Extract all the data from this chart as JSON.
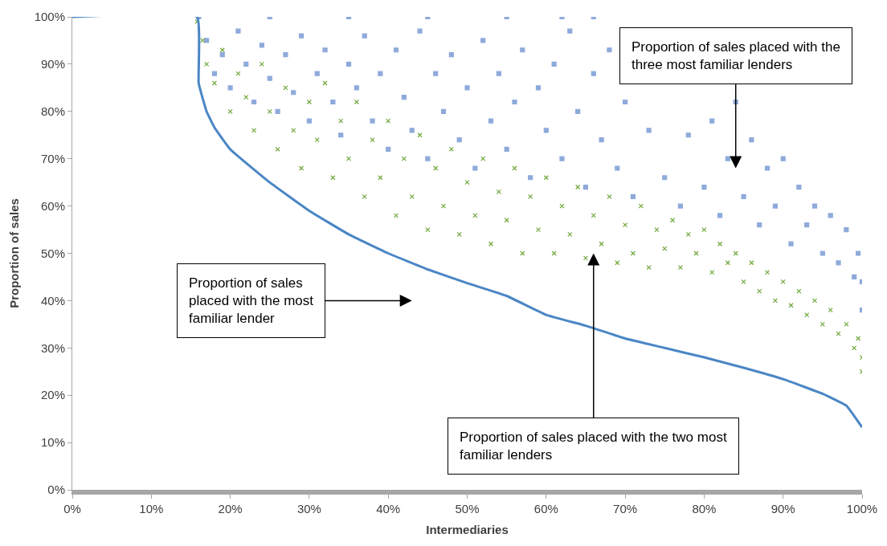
{
  "chart_data": {
    "type": "scatter",
    "xlabel": "Intermediaries",
    "ylabel": "Proportion of sales",
    "xlim": [
      0,
      100
    ],
    "ylim": [
      0,
      100
    ],
    "xticks": [
      {
        "value": 0,
        "label": "0%"
      },
      {
        "value": 10,
        "label": "10%"
      },
      {
        "value": 20,
        "label": "20%"
      },
      {
        "value": 30,
        "label": "30%"
      },
      {
        "value": 40,
        "label": "40%"
      },
      {
        "value": 50,
        "label": "50%"
      },
      {
        "value": 60,
        "label": "60%"
      },
      {
        "value": 70,
        "label": "70%"
      },
      {
        "value": 80,
        "label": "80%"
      },
      {
        "value": 90,
        "label": "90%"
      },
      {
        "value": 100,
        "label": "100%"
      }
    ],
    "yticks": [
      {
        "value": 0,
        "label": "0%"
      },
      {
        "value": 10,
        "label": "10%"
      },
      {
        "value": 20,
        "label": "20%"
      },
      {
        "value": 30,
        "label": "30%"
      },
      {
        "value": 40,
        "label": "40%"
      },
      {
        "value": 50,
        "label": "50%"
      },
      {
        "value": 60,
        "label": "60%"
      },
      {
        "value": 70,
        "label": "70%"
      },
      {
        "value": 80,
        "label": "80%"
      },
      {
        "value": 90,
        "label": "90%"
      },
      {
        "value": 100,
        "label": "100%"
      }
    ],
    "series": [
      {
        "marker": "square",
        "color": "#8eaadb",
        "x": [
          16,
          25,
          35,
          45,
          55,
          62,
          66,
          17,
          18,
          19,
          20,
          21,
          22,
          23,
          24,
          25,
          26,
          27,
          28,
          29,
          30,
          31,
          32,
          33,
          34,
          35,
          36,
          37,
          38,
          39,
          40,
          41,
          42,
          43,
          44,
          45,
          46,
          47,
          48,
          49,
          50,
          51,
          52,
          53,
          54,
          55,
          56,
          57,
          58,
          59,
          60,
          61,
          62,
          63,
          64,
          65,
          66,
          67,
          68,
          69,
          70,
          71,
          73,
          75,
          77,
          78,
          80,
          81,
          82,
          83,
          84,
          85,
          86,
          87,
          88,
          89,
          90,
          91,
          92,
          93,
          94,
          95,
          96,
          97,
          98,
          99,
          99.5,
          100,
          100
        ],
        "values": [
          100,
          100,
          100,
          100,
          100,
          100,
          100,
          95,
          88,
          92,
          85,
          97,
          90,
          82,
          94,
          87,
          80,
          92,
          84,
          96,
          78,
          88,
          93,
          82,
          75,
          90,
          85,
          96,
          78,
          88,
          72,
          93,
          83,
          76,
          97,
          70,
          88,
          80,
          92,
          74,
          85,
          68,
          95,
          78,
          88,
          72,
          82,
          93,
          66,
          85,
          76,
          90,
          70,
          97,
          80,
          64,
          88,
          74,
          93,
          68,
          82,
          62,
          76,
          66,
          60,
          75,
          64,
          78,
          58,
          70,
          82,
          62,
          74,
          56,
          68,
          60,
          70,
          52,
          64,
          56,
          60,
          50,
          58,
          48,
          55,
          45,
          50,
          38,
          44
        ]
      },
      {
        "marker": "cross",
        "color": "#70a83c",
        "x": [
          15.8,
          16.5,
          17,
          18,
          19,
          20,
          21,
          22,
          23,
          24,
          25,
          26,
          27,
          28,
          29,
          30,
          31,
          32,
          33,
          34,
          35,
          36,
          37,
          38,
          39,
          40,
          41,
          42,
          43,
          44,
          45,
          46,
          47,
          48,
          49,
          50,
          51,
          52,
          53,
          54,
          55,
          56,
          57,
          58,
          59,
          60,
          61,
          62,
          63,
          64,
          65,
          66,
          67,
          68,
          69,
          70,
          71,
          72,
          73,
          74,
          75,
          76,
          77,
          78,
          79,
          80,
          81,
          82,
          83,
          84,
          85,
          86,
          87,
          88,
          89,
          90,
          91,
          92,
          93,
          94,
          95,
          96,
          97,
          98,
          99,
          99.5,
          100,
          100
        ],
        "values": [
          99,
          95,
          90,
          86,
          93,
          80,
          88,
          83,
          76,
          90,
          80,
          72,
          85,
          76,
          68,
          82,
          74,
          86,
          66,
          78,
          70,
          82,
          62,
          74,
          66,
          78,
          58,
          70,
          62,
          75,
          55,
          68,
          60,
          72,
          54,
          65,
          58,
          70,
          52,
          63,
          57,
          68,
          50,
          62,
          55,
          66,
          50,
          60,
          54,
          64,
          49,
          58,
          52,
          62,
          48,
          56,
          50,
          60,
          47,
          55,
          51,
          57,
          47,
          54,
          50,
          55,
          46,
          52,
          48,
          50,
          44,
          48,
          42,
          46,
          40,
          44,
          39,
          42,
          37,
          40,
          35,
          38,
          33,
          35,
          30,
          32,
          25,
          28
        ]
      },
      {
        "type": "line",
        "marker": "none",
        "color": "#4a86c5",
        "x": [
          0,
          15.8,
          16,
          17,
          18,
          20,
          25,
          30,
          35,
          40,
          45,
          50,
          55,
          60,
          65,
          70,
          75,
          80,
          85,
          90,
          95,
          98,
          100
        ],
        "values": [
          100,
          100,
          86,
          80,
          76.6,
          72,
          65,
          59,
          54,
          50,
          46.6,
          43.7,
          41,
          37,
          34.7,
          32,
          30,
          28,
          25.8,
          23.4,
          20.3,
          17.8,
          13.2
        ]
      }
    ],
    "annotations": [
      "Proportion of sales placed with the three most familiar lenders",
      "Proportion of sales placed with the most familiar lender",
      "Proportion of sales placed with the two most familiar lenders"
    ]
  }
}
